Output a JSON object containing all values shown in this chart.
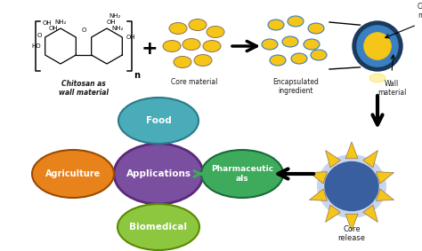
{
  "background_color": "#ffffff",
  "core_material_color": "#F5C518",
  "core_outline_color": "#8B7355",
  "encapsule_blue": "#3A7FC1",
  "encapsule_dark": "#1a3a5c",
  "food_color": "#4AACB8",
  "agriculture_color": "#E8821A",
  "applications_color": "#7B4FA0",
  "pharmaceuticals_color": "#3DAA5C",
  "biomedical_color": "#8DC63F",
  "sun_blue": "#3A5FA0",
  "sun_yellow": "#F5C518",
  "sun_glow": "#6688cc",
  "arrow_color": "#1a1a1a",
  "text_color": "#1a1a1a",
  "chitosan_label": "Chitosan as\nwall material",
  "core_label": "Core material",
  "encapsulated_label": "Encapsulated\ningredient",
  "core_material_label": "Core\nmaterial",
  "wall_material_label": "Wall\nmaterial",
  "core_release_label": "Core\nrelease",
  "food_label": "Food",
  "agriculture_label": "Agriculture",
  "applications_label": "Applications",
  "pharmaceuticals_label": "Pharmaceutic\nals",
  "biomedical_label": "Biomedical"
}
